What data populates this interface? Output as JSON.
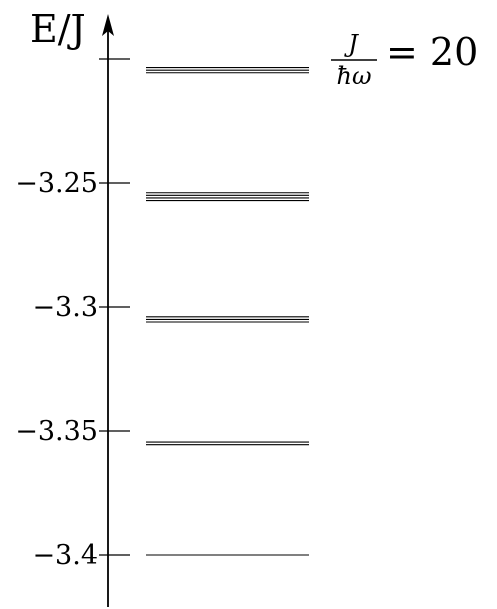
{
  "chart_data": {
    "type": "energy-levels",
    "ylabel": "E/J",
    "annotation": {
      "numerator": "J",
      "denominator": "ħω",
      "relation": "= 20"
    },
    "yticks": [
      -3.4,
      -3.35,
      -3.3,
      -3.25,
      -3.2
    ],
    "ytick_labels": [
      "−3.4",
      "−3.35",
      "−3.3",
      "−3.25",
      ""
    ],
    "ylim": [
      -3.41,
      -3.188
    ],
    "levels": [
      {
        "energy": -3.4,
        "lines": 1
      },
      {
        "energy": -3.355,
        "lines": 2
      },
      {
        "energy": -3.305,
        "lines": 3
      },
      {
        "energy": -3.2555,
        "lines": 4
      },
      {
        "energy": -3.2045,
        "lines": 3
      }
    ]
  }
}
